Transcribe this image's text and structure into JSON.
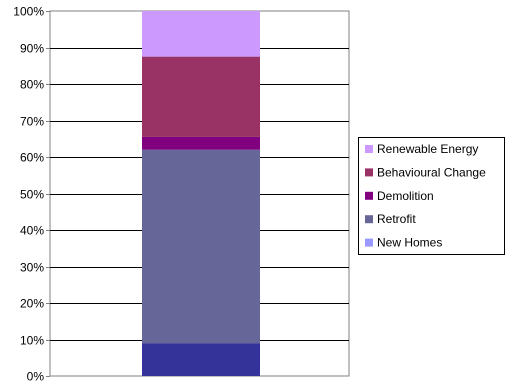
{
  "chart_data": {
    "type": "bar",
    "stacked": true,
    "categories": [
      ""
    ],
    "yaxis": {
      "ylim": [
        0,
        100
      ],
      "tick_labels": [
        "0%",
        "10%",
        "20%",
        "30%",
        "40%",
        "50%",
        "60%",
        "70%",
        "80%",
        "90%",
        "100%"
      ]
    },
    "grid": true,
    "legend_position": "right",
    "series": [
      {
        "name": "New Homes",
        "values": [
          9
        ],
        "color": "#333399",
        "legend_color": "#9999ff"
      },
      {
        "name": "Retrofit",
        "values": [
          53
        ],
        "color": "#666699",
        "legend_color": "#666699"
      },
      {
        "name": "Demolition",
        "values": [
          3.5
        ],
        "color": "#800080",
        "legend_color": "#800080"
      },
      {
        "name": "Behavioural Change",
        "values": [
          22
        ],
        "color": "#993366",
        "legend_color": "#993366"
      },
      {
        "name": "Renewable Energy",
        "values": [
          12.5
        ],
        "color": "#cc99ff",
        "legend_color": "#cc99ff"
      }
    ]
  }
}
